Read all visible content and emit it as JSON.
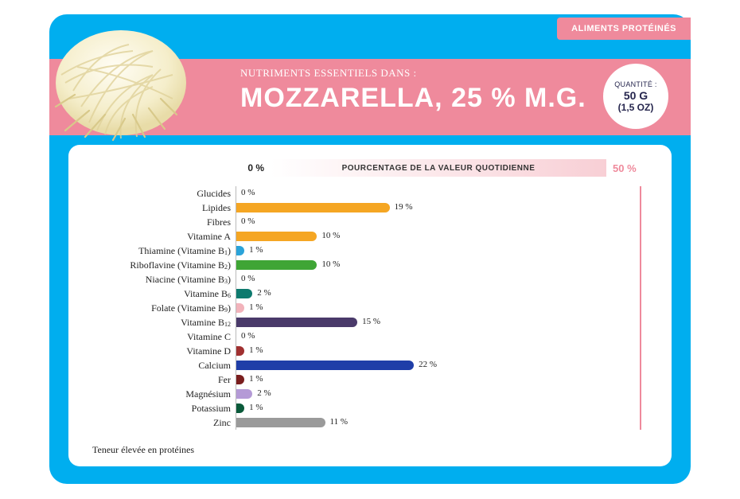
{
  "tag": "ALIMENTS PROTÉINÉS",
  "subtitle": "NUTRIMENTS ESSENTIELS DANS :",
  "title": "MOZZARELLA, 25 % M.G.",
  "quantity": {
    "label": "QUANTITÉ :",
    "line1": "50 G",
    "line2": "(1,5 OZ)"
  },
  "scale": {
    "min_label": "0 %",
    "caption": "POURCENTAGE DE LA VALEUR QUOTIDIENNE",
    "max": 50,
    "max_label": "50 %"
  },
  "footnote": "Teneur élevée en protéines",
  "colors": {
    "card_bg": "#00aeef",
    "band": "#ef8a9c",
    "limit_line": "#ef8a9c",
    "panel_bg": "#ffffff",
    "title_text": "#ffffff",
    "label_text": "#222222"
  },
  "nutrients": [
    {
      "label": "Glucides",
      "value": 0,
      "text": "0 %",
      "color": "#f5a623"
    },
    {
      "label": "Lipides",
      "value": 19,
      "text": "19 %",
      "color": "#f5a623"
    },
    {
      "label": "Fibres",
      "value": 0,
      "text": "0 %",
      "color": "#f5a623"
    },
    {
      "label": "Vitamine A",
      "value": 10,
      "text": "10 %",
      "color": "#f5a623"
    },
    {
      "label": "Thiamine (Vitamine B<sub>1</sub>)",
      "value": 1,
      "text": "1 %",
      "color": "#2aa3d9"
    },
    {
      "label": "Riboflavine (Vitamine B<sub>2</sub>)",
      "value": 10,
      "text": "10 %",
      "color": "#3fa535"
    },
    {
      "label": "Niacine (Vitamine B<sub>3</sub>)",
      "value": 0,
      "text": "0 %",
      "color": "#0d7a6e"
    },
    {
      "label": "Vitamine B<sub>6</sub>",
      "value": 2,
      "text": "2 %",
      "color": "#0d7a6e"
    },
    {
      "label": "Folate (Vitamine B<sub>9</sub>)",
      "value": 1,
      "text": "1 %",
      "color": "#f2b3bb"
    },
    {
      "label": "Vitamine B<sub>12</sub>",
      "value": 15,
      "text": "15 %",
      "color": "#4a3a6a"
    },
    {
      "label": "Vitamine C",
      "value": 0,
      "text": "0 %",
      "color": "#a03030"
    },
    {
      "label": "Vitamine D",
      "value": 1,
      "text": "1 %",
      "color": "#a03030"
    },
    {
      "label": "Calcium",
      "value": 22,
      "text": "22 %",
      "color": "#1f3ea8"
    },
    {
      "label": "Fer",
      "value": 1,
      "text": "1 %",
      "color": "#7a1e1e"
    },
    {
      "label": "Magnésium",
      "value": 2,
      "text": "2 %",
      "color": "#b49ad6"
    },
    {
      "label": "Potassium",
      "value": 1,
      "text": "1 %",
      "color": "#0a5a3a"
    },
    {
      "label": "Zinc",
      "value": 11,
      "text": "11 %",
      "color": "#9a9a9a"
    }
  ]
}
